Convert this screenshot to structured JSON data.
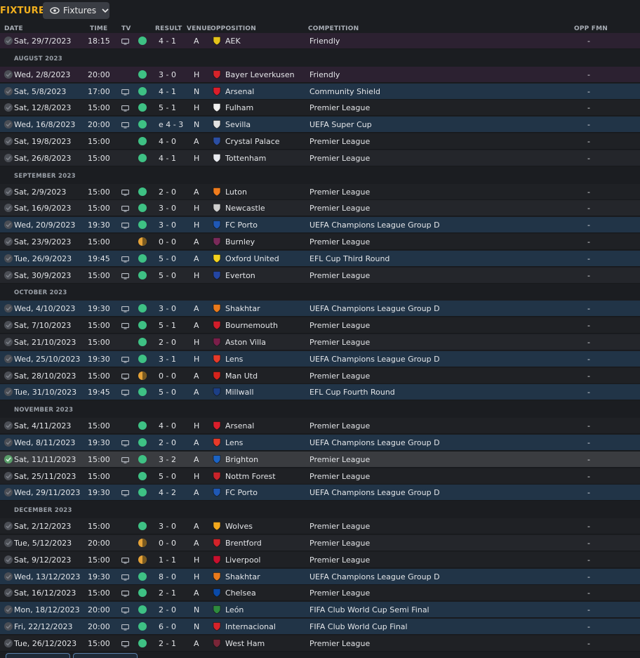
{
  "page": {
    "title": "FIXTURES"
  },
  "filter": {
    "label": "Fixtures",
    "icon": "eye-icon"
  },
  "columns": {
    "date": "DATE",
    "time": "TIME",
    "tv": "TV",
    "result": "RESULT",
    "venue": "VENUE",
    "opposition": "OPPOSITION",
    "competition": "COMPETITION",
    "opp_fmn": "OPP FMN"
  },
  "colors": {
    "win": "#3ec184",
    "draw": "#e6a338",
    "accent": "#f2b01e",
    "euro_row": "#213447",
    "friendly_row": "#2c2131"
  },
  "rows": [
    {
      "kind": "match",
      "style": "friendly",
      "date": "Sat, 29/7/2023",
      "time": "18:15",
      "tv": true,
      "outcome": "win",
      "result": "4 - 1",
      "venue": "A",
      "opponent": "AEK",
      "badge": "#e4c21a",
      "competition": "Friendly",
      "fmn": "-"
    },
    {
      "kind": "month",
      "label": "AUGUST 2023"
    },
    {
      "kind": "match",
      "style": "friendly",
      "date": "Wed, 2/8/2023",
      "time": "20:00",
      "tv": false,
      "outcome": "win",
      "result": "3 - 0",
      "venue": "H",
      "opponent": "Bayer Leverkusen",
      "badge": "#d8232a",
      "competition": "Friendly",
      "fmn": "-"
    },
    {
      "kind": "match",
      "style": "euro",
      "date": "Sat, 5/8/2023",
      "time": "17:00",
      "tv": true,
      "outcome": "win",
      "result": "4 - 1",
      "venue": "N",
      "opponent": "Arsenal",
      "badge": "#db1e2b",
      "competition": "Community Shield",
      "fmn": "-"
    },
    {
      "kind": "match",
      "style": "plain",
      "date": "Sat, 12/8/2023",
      "time": "15:00",
      "tv": true,
      "outcome": "win",
      "result": "5 - 1",
      "venue": "H",
      "opponent": "Fulham",
      "badge": "#f0f0f0",
      "competition": "Premier League",
      "fmn": "-"
    },
    {
      "kind": "match",
      "style": "euro",
      "date": "Wed, 16/8/2023",
      "time": "20:00",
      "tv": true,
      "outcome": "win",
      "result": "e 4 - 3",
      "venue": "N",
      "opponent": "Sevilla",
      "badge": "#e2e2e2",
      "competition": "UEFA Super Cup",
      "fmn": "-"
    },
    {
      "kind": "match",
      "style": "plain",
      "date": "Sat, 19/8/2023",
      "time": "15:00",
      "tv": false,
      "outcome": "win",
      "result": "4 - 0",
      "venue": "A",
      "opponent": "Crystal Palace",
      "badge": "#2b4ea2",
      "competition": "Premier League",
      "fmn": "-"
    },
    {
      "kind": "match",
      "style": "alt",
      "date": "Sat, 26/8/2023",
      "time": "15:00",
      "tv": false,
      "outcome": "win",
      "result": "4 - 1",
      "venue": "H",
      "opponent": "Tottenham",
      "badge": "#e8eaf0",
      "competition": "Premier League",
      "fmn": "-"
    },
    {
      "kind": "month",
      "label": "SEPTEMBER 2023"
    },
    {
      "kind": "match",
      "style": "plain",
      "date": "Sat, 2/9/2023",
      "time": "15:00",
      "tv": true,
      "outcome": "win",
      "result": "2 - 0",
      "venue": "A",
      "opponent": "Luton",
      "badge": "#f07c1d",
      "competition": "Premier League",
      "fmn": "-"
    },
    {
      "kind": "match",
      "style": "alt",
      "date": "Sat, 16/9/2023",
      "time": "15:00",
      "tv": true,
      "outcome": "win",
      "result": "3 - 0",
      "venue": "H",
      "opponent": "Newcastle",
      "badge": "#cfcfcf",
      "competition": "Premier League",
      "fmn": "-"
    },
    {
      "kind": "match",
      "style": "euro",
      "date": "Wed, 20/9/2023",
      "time": "19:30",
      "tv": true,
      "outcome": "win",
      "result": "3 - 0",
      "venue": "H",
      "opponent": "FC Porto",
      "badge": "#1f58b5",
      "competition": "UEFA Champions League Group D",
      "fmn": "-"
    },
    {
      "kind": "match",
      "style": "plain",
      "date": "Sat, 23/9/2023",
      "time": "15:00",
      "tv": false,
      "outcome": "draw",
      "result": "0 - 0",
      "venue": "A",
      "opponent": "Burnley",
      "badge": "#7a2a5a",
      "competition": "Premier League",
      "fmn": "-"
    },
    {
      "kind": "match",
      "style": "euro",
      "date": "Tue, 26/9/2023",
      "time": "19:45",
      "tv": true,
      "outcome": "win",
      "result": "5 - 0",
      "venue": "A",
      "opponent": "Oxford United",
      "badge": "#f3d21e",
      "competition": "EFL Cup Third Round",
      "fmn": "-"
    },
    {
      "kind": "match",
      "style": "alt",
      "date": "Sat, 30/9/2023",
      "time": "15:00",
      "tv": true,
      "outcome": "win",
      "result": "5 - 0",
      "venue": "H",
      "opponent": "Everton",
      "badge": "#2446a3",
      "competition": "Premier League",
      "fmn": "-"
    },
    {
      "kind": "month",
      "label": "OCTOBER 2023"
    },
    {
      "kind": "match",
      "style": "euro",
      "date": "Wed, 4/10/2023",
      "time": "19:30",
      "tv": true,
      "outcome": "win",
      "result": "3 - 0",
      "venue": "A",
      "opponent": "Shakhtar",
      "badge": "#e97a1c",
      "competition": "UEFA Champions League Group D",
      "fmn": "-"
    },
    {
      "kind": "match",
      "style": "plain",
      "date": "Sat, 7/10/2023",
      "time": "15:00",
      "tv": true,
      "outcome": "win",
      "result": "5 - 1",
      "venue": "A",
      "opponent": "Bournemouth",
      "badge": "#d11d2a",
      "competition": "Premier League",
      "fmn": "-"
    },
    {
      "kind": "match",
      "style": "alt",
      "date": "Sat, 21/10/2023",
      "time": "15:00",
      "tv": false,
      "outcome": "win",
      "result": "2 - 0",
      "venue": "H",
      "opponent": "Aston Villa",
      "badge": "#7a1f4a",
      "competition": "Premier League",
      "fmn": "-"
    },
    {
      "kind": "match",
      "style": "euro",
      "date": "Wed, 25/10/2023",
      "time": "19:30",
      "tv": true,
      "outcome": "win",
      "result": "3 - 1",
      "venue": "H",
      "opponent": "Lens",
      "badge": "#e63a2a",
      "competition": "UEFA Champions League Group D",
      "fmn": "-"
    },
    {
      "kind": "match",
      "style": "plain",
      "date": "Sat, 28/10/2023",
      "time": "15:00",
      "tv": true,
      "outcome": "draw",
      "result": "0 - 0",
      "venue": "A",
      "opponent": "Man Utd",
      "badge": "#d6231c",
      "competition": "Premier League",
      "fmn": "-"
    },
    {
      "kind": "match",
      "style": "euro",
      "date": "Tue, 31/10/2023",
      "time": "19:45",
      "tv": true,
      "outcome": "win",
      "result": "5 - 0",
      "venue": "A",
      "opponent": "Millwall",
      "badge": "#1c3f86",
      "competition": "EFL Cup Fourth Round",
      "fmn": "-"
    },
    {
      "kind": "month",
      "label": "NOVEMBER 2023"
    },
    {
      "kind": "match",
      "style": "plain",
      "date": "Sat, 4/11/2023",
      "time": "15:00",
      "tv": false,
      "outcome": "win",
      "result": "4 - 0",
      "venue": "H",
      "opponent": "Arsenal",
      "badge": "#db1e2b",
      "competition": "Premier League",
      "fmn": "-"
    },
    {
      "kind": "match",
      "style": "euro",
      "date": "Wed, 8/11/2023",
      "time": "19:30",
      "tv": true,
      "outcome": "win",
      "result": "2 - 0",
      "venue": "A",
      "opponent": "Lens",
      "badge": "#e63a2a",
      "competition": "UEFA Champions League Group D",
      "fmn": "-"
    },
    {
      "kind": "match",
      "style": "selected",
      "checked": true,
      "date": "Sat, 11/11/2023",
      "time": "15:00",
      "tv": true,
      "outcome": "win",
      "result": "3 - 2",
      "venue": "A",
      "opponent": "Brighton",
      "badge": "#1b63c4",
      "competition": "Premier League",
      "fmn": "-"
    },
    {
      "kind": "match",
      "style": "plain",
      "date": "Sat, 25/11/2023",
      "time": "15:00",
      "tv": false,
      "outcome": "win",
      "result": "5 - 0",
      "venue": "H",
      "opponent": "Nottm Forest",
      "badge": "#c8232a",
      "competition": "Premier League",
      "fmn": "-"
    },
    {
      "kind": "match",
      "style": "euro",
      "date": "Wed, 29/11/2023",
      "time": "19:30",
      "tv": true,
      "outcome": "win",
      "result": "4 - 2",
      "venue": "A",
      "opponent": "FC Porto",
      "badge": "#1f58b5",
      "competition": "UEFA Champions League Group D",
      "fmn": "-"
    },
    {
      "kind": "month",
      "label": "DECEMBER 2023"
    },
    {
      "kind": "match",
      "style": "plain",
      "date": "Sat, 2/12/2023",
      "time": "15:00",
      "tv": false,
      "outcome": "win",
      "result": "3 - 0",
      "venue": "A",
      "opponent": "Wolves",
      "badge": "#f2a81d",
      "competition": "Premier League",
      "fmn": "-"
    },
    {
      "kind": "match",
      "style": "alt",
      "date": "Tue, 5/12/2023",
      "time": "20:00",
      "tv": false,
      "outcome": "draw",
      "result": "0 - 0",
      "venue": "A",
      "opponent": "Brentford",
      "badge": "#d3232a",
      "competition": "Premier League",
      "fmn": "-"
    },
    {
      "kind": "match",
      "style": "plain",
      "date": "Sat, 9/12/2023",
      "time": "15:00",
      "tv": true,
      "outcome": "draw",
      "result": "1 - 1",
      "venue": "H",
      "opponent": "Liverpool",
      "badge": "#c8102e",
      "competition": "Premier League",
      "fmn": "-"
    },
    {
      "kind": "match",
      "style": "euro",
      "date": "Wed, 13/12/2023",
      "time": "19:30",
      "tv": true,
      "outcome": "win",
      "result": "8 - 0",
      "venue": "H",
      "opponent": "Shakhtar",
      "badge": "#e97a1c",
      "competition": "UEFA Champions League Group D",
      "fmn": "-"
    },
    {
      "kind": "match",
      "style": "plain",
      "date": "Sat, 16/12/2023",
      "time": "15:00",
      "tv": true,
      "outcome": "win",
      "result": "2 - 1",
      "venue": "A",
      "opponent": "Chelsea",
      "badge": "#0a4aa8",
      "competition": "Premier League",
      "fmn": "-"
    },
    {
      "kind": "match",
      "style": "euro",
      "date": "Mon, 18/12/2023",
      "time": "20:00",
      "tv": true,
      "outcome": "win",
      "result": "2 - 0",
      "venue": "N",
      "opponent": "León",
      "badge": "#2e8b3e",
      "competition": "FIFA Club World Cup Semi Final",
      "fmn": "-"
    },
    {
      "kind": "match",
      "style": "euro",
      "date": "Fri, 22/12/2023",
      "time": "20:00",
      "tv": true,
      "outcome": "win",
      "result": "6 - 0",
      "venue": "N",
      "opponent": "Internacional",
      "badge": "#d5232a",
      "competition": "FIFA Club World Cup Final",
      "fmn": "-"
    },
    {
      "kind": "match",
      "style": "plain",
      "date": "Tue, 26/12/2023",
      "time": "15:00",
      "tv": true,
      "outcome": "win",
      "result": "2 - 1",
      "venue": "A",
      "opponent": "West Ham",
      "badge": "#7a2638",
      "competition": "Premier League",
      "fmn": "-"
    }
  ]
}
